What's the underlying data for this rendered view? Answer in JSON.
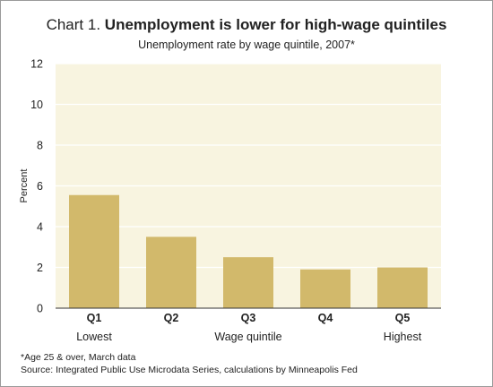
{
  "header": {
    "chart_number": "Chart 1.",
    "title": "Unemployment is lower for high-wage quintiles",
    "subtitle": "Unemployment rate by wage quintile, 2007*"
  },
  "footnotes": {
    "note": "*Age 25 & over, March data",
    "source": "Source: Integrated Public Use Microdata Series, calculations by Minneapolis Fed"
  },
  "colors": {
    "plot_background": "#f8f4e0",
    "bar": "#d2b96b",
    "gridline": "#ffffff"
  },
  "chart_data": {
    "type": "bar",
    "title": "Unemployment is lower for high-wage quintiles",
    "subtitle": "Unemployment rate by wage quintile, 2007*",
    "categories": [
      "Q1",
      "Q2",
      "Q3",
      "Q4",
      "Q5"
    ],
    "category_sublabels": [
      "Lowest",
      "",
      "",
      "",
      "Highest"
    ],
    "values": [
      5.55,
      3.5,
      2.5,
      1.9,
      2.0
    ],
    "xlabel": "Wage quintile",
    "ylabel": "Percent",
    "ylim": [
      0,
      12
    ],
    "yticks": [
      0,
      2,
      4,
      6,
      8,
      10,
      12
    ],
    "grid": true,
    "legend": "none"
  }
}
